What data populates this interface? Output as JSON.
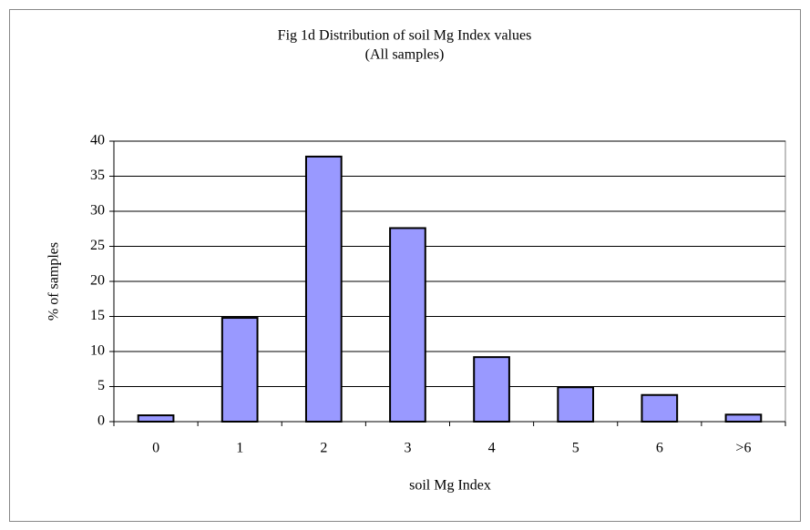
{
  "chart_data": {
    "type": "bar",
    "title": "Fig 1d Distribution of soil Mg Index values",
    "subtitle": "(All samples)",
    "x_label": "soil Mg Index",
    "y_label": "% of samples",
    "categories": [
      "0",
      "1",
      "2",
      "3",
      "4",
      "5",
      "6",
      ">6"
    ],
    "values": [
      0.9,
      14.8,
      37.8,
      27.6,
      9.2,
      4.9,
      3.8,
      1.0
    ],
    "color": "#9999ff",
    "ylim": [
      0,
      40
    ],
    "yticks": [
      0,
      5,
      10,
      15,
      20,
      25,
      30,
      35,
      40
    ],
    "grid": true
  }
}
